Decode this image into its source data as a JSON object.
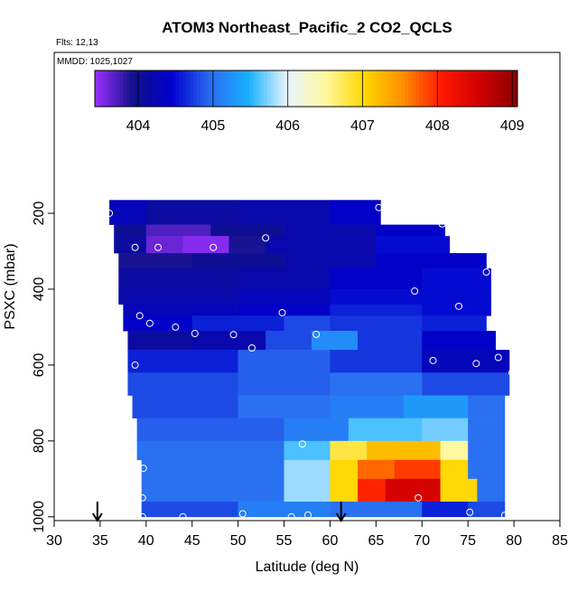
{
  "chart_data": {
    "type": "curtain",
    "title": "ATOM3 Northeast_Pacific_2 CO2_QCLS",
    "annotations": [
      "Flts: 12,13",
      "MMDD: 1025,1027"
    ],
    "x_label": "Latitude (deg N)",
    "y_label": "PSXC (mbar)",
    "xlim": [
      30,
      85
    ],
    "xticks": [
      30,
      35,
      40,
      45,
      50,
      55,
      60,
      65,
      70,
      75,
      80,
      85
    ],
    "ylim": [
      1010,
      -224
    ],
    "yticks": [
      200,
      400,
      600,
      800,
      1000
    ],
    "clim": [
      403.42,
      409.07
    ],
    "cticks": [
      404,
      405,
      406,
      407,
      408,
      409
    ],
    "colorscale": [
      "#9b30ff",
      "#10108a",
      "#0000cd",
      "#2a6cf0",
      "#18b0ff",
      "#e8f4ff",
      "#fff8a0",
      "#ffd700",
      "#ff9000",
      "#ff1a00",
      "#d00000",
      "#8b0000"
    ],
    "rows": [
      {
        "p": [
          165,
          230
        ],
        "lat": [
          36,
          40,
          50,
          60,
          65.5
        ],
        "values": [
          404.3,
          404.1,
          404.2,
          404.4
        ]
      },
      {
        "p": [
          230,
          260
        ],
        "lat": [
          36.5,
          40,
          47,
          55,
          65,
          72.5
        ],
        "values": [
          404.0,
          403.7,
          404.0,
          404.2,
          404.4
        ]
      },
      {
        "p": [
          260,
          305
        ],
        "lat": [
          36.5,
          40,
          44,
          49,
          53,
          65,
          73
        ],
        "values": [
          404.1,
          403.6,
          403.5,
          403.9,
          404.2,
          404.5
        ]
      },
      {
        "p": [
          305,
          345
        ],
        "lat": [
          37,
          45,
          55,
          65,
          77
        ],
        "values": [
          403.9,
          404.0,
          404.2,
          404.4
        ]
      },
      {
        "p": [
          345,
          400
        ],
        "lat": [
          37,
          50,
          60,
          70,
          77.5
        ],
        "values": [
          404.1,
          404.2,
          404.4,
          404.5
        ]
      },
      {
        "p": [
          400,
          440
        ],
        "lat": [
          37,
          50,
          60,
          70,
          77.5
        ],
        "values": [
          404.2,
          404.3,
          404.5,
          404.5
        ]
      },
      {
        "p": [
          440,
          470
        ],
        "lat": [
          37.5,
          50,
          60,
          70,
          77.5
        ],
        "values": [
          404.3,
          404.4,
          404.6,
          404.5
        ]
      },
      {
        "p": [
          470,
          510
        ],
        "lat": [
          37.5,
          45,
          55,
          60,
          70,
          77
        ],
        "values": [
          404.4,
          404.6,
          404.8,
          404.7,
          404.6
        ]
      },
      {
        "p": [
          510,
          560
        ],
        "lat": [
          38,
          45,
          53,
          58,
          63,
          70,
          78
        ],
        "values": [
          404.1,
          404.2,
          404.8,
          405.2,
          404.7,
          404.4
        ]
      },
      {
        "p": [
          560,
          620
        ],
        "lat": [
          38,
          50,
          60,
          70,
          79.5
        ],
        "values": [
          404.6,
          404.9,
          404.7,
          404.3
        ]
      },
      {
        "p": [
          620,
          680
        ],
        "lat": [
          38,
          50,
          60,
          70,
          79.5
        ],
        "values": [
          404.8,
          404.9,
          405.0,
          404.8
        ]
      },
      {
        "p": [
          680,
          740
        ],
        "lat": [
          38.5,
          50,
          60,
          68,
          75,
          79
        ],
        "values": [
          404.8,
          405.0,
          405.1,
          405.3,
          405.0
        ]
      },
      {
        "p": [
          740,
          800
        ],
        "lat": [
          39,
          55,
          62,
          70,
          75,
          79
        ],
        "values": [
          404.9,
          405.1,
          405.6,
          405.7,
          405.0
        ]
      },
      {
        "p": [
          800,
          850
        ],
        "lat": [
          39,
          55,
          60,
          64,
          72,
          75,
          79
        ],
        "values": [
          405.0,
          405.6,
          406.8,
          407.2,
          406.5,
          405.0
        ]
      },
      {
        "p": [
          850,
          900
        ],
        "lat": [
          39.5,
          55,
          60,
          63,
          67,
          72,
          75,
          79
        ],
        "values": [
          405.0,
          405.8,
          407.0,
          407.7,
          407.9,
          407.0,
          405.0
        ]
      },
      {
        "p": [
          900,
          960
        ],
        "lat": [
          39.5,
          55,
          60,
          63,
          66,
          72,
          76,
          79
        ],
        "values": [
          405.0,
          405.8,
          407.0,
          408.0,
          408.5,
          407.0,
          405.0
        ]
      },
      {
        "p": [
          960,
          1000
        ],
        "lat": [
          39.5,
          50,
          60,
          70,
          75,
          79
        ],
        "values": [
          404.8,
          405.1,
          405.0,
          404.6,
          404.8
        ]
      }
    ],
    "points": {
      "x": [
        36,
        38.8,
        41.3,
        47.3,
        53,
        65.3,
        72.2,
        77,
        69.2,
        74,
        36.8,
        39.3,
        40.4,
        43.2,
        45.3,
        49.5,
        54.8,
        58.5,
        51.5,
        38.8,
        71.2,
        75.9,
        78.3,
        79.8,
        57,
        39.7,
        69.6,
        39.6,
        39.6,
        44,
        50.5,
        55.8,
        57.6,
        75.2,
        79
      ],
      "y": [
        200,
        290,
        290,
        290,
        265,
        185,
        228,
        355,
        405,
        445,
        455,
        470,
        490,
        500,
        517,
        520,
        462,
        519,
        555,
        600,
        588,
        596,
        580,
        620,
        808,
        872,
        950,
        950,
        1000,
        1000,
        992,
        1000,
        995,
        988,
        996
      ],
      "color": "#ffffff"
    },
    "arrows_x": [
      34.7,
      61.2
    ]
  }
}
